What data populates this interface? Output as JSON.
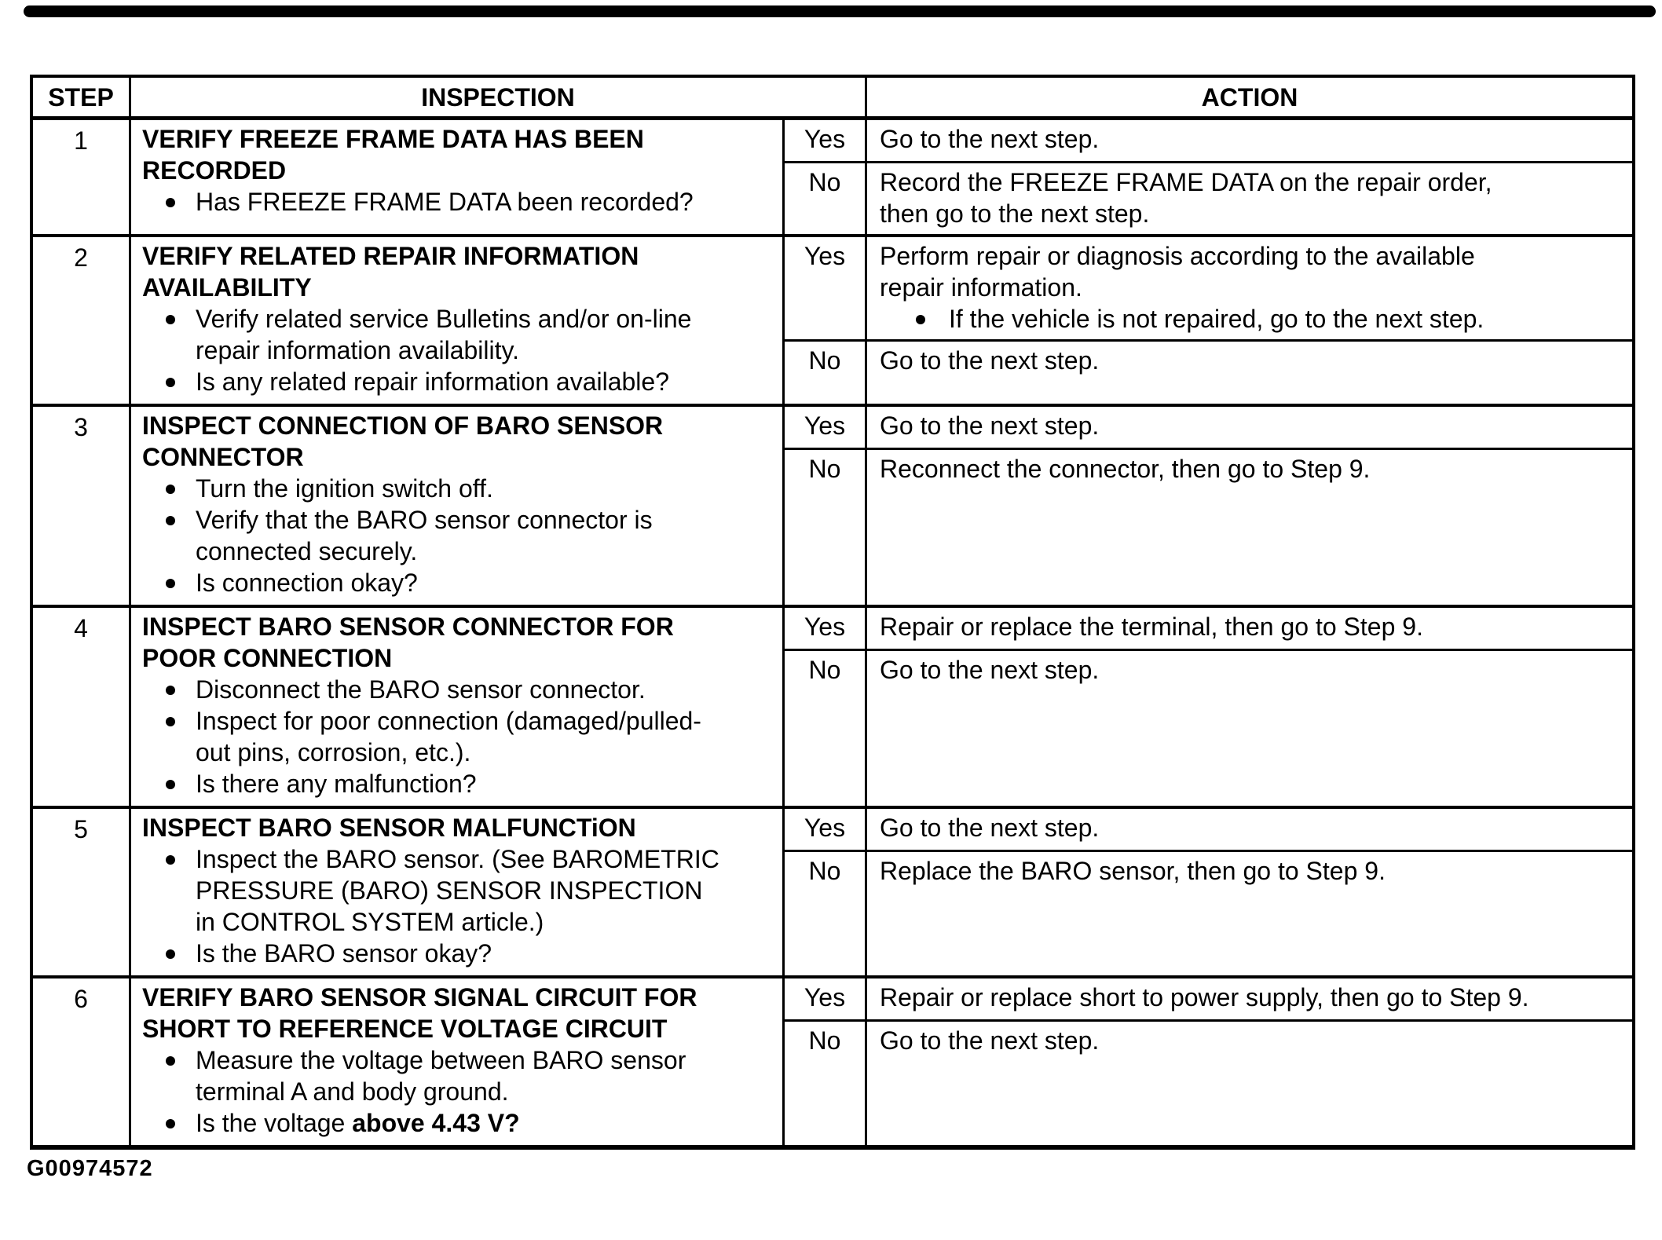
{
  "table": {
    "headers": {
      "step": "STEP",
      "inspection": "INSPECTION",
      "action": "ACTION"
    },
    "rows": [
      {
        "step": "1",
        "title_lines": [
          "VERIFY FREEZE FRAME DATA HAS BEEN",
          "RECORDED"
        ],
        "bullets": [
          {
            "lines": [
              "Has FREEZE FRAME DATA been recorded?"
            ]
          }
        ],
        "branches": [
          {
            "answer": "Yes",
            "lines": [
              "Go to the next step."
            ]
          },
          {
            "answer": "No",
            "lines": [
              "Record the FREEZE FRAME DATA on the repair order,",
              "then go to the next step."
            ]
          }
        ]
      },
      {
        "step": "2",
        "title_lines": [
          "VERIFY RELATED REPAIR INFORMATION",
          "AVAILABILITY"
        ],
        "bullets": [
          {
            "lines": [
              "Verify related service Bulletins and/or on-line",
              "repair information availability."
            ]
          },
          {
            "lines": [
              "Is any related repair information available?"
            ]
          }
        ],
        "branches": [
          {
            "answer": "Yes",
            "lines": [
              "Perform repair or diagnosis according to the available",
              "repair information."
            ],
            "bullets": [
              {
                "lines": [
                  "If the vehicle is not repaired, go to the next step."
                ]
              }
            ]
          },
          {
            "answer": "No",
            "lines": [
              "Go to the next step."
            ]
          }
        ]
      },
      {
        "step": "3",
        "title_lines": [
          "INSPECT CONNECTION OF BARO SENSOR",
          "CONNECTOR"
        ],
        "bullets": [
          {
            "lines": [
              "Turn the ignition switch off."
            ]
          },
          {
            "lines": [
              "Verify that the BARO sensor connector is",
              "connected securely."
            ]
          },
          {
            "lines": [
              "Is connection okay?"
            ]
          }
        ],
        "branches": [
          {
            "answer": "Yes",
            "lines": [
              "Go to the next step."
            ]
          },
          {
            "answer": "No",
            "lines": [
              "Reconnect the connector, then go to Step 9."
            ]
          }
        ]
      },
      {
        "step": "4",
        "title_lines": [
          "INSPECT BARO SENSOR CONNECTOR FOR",
          "POOR CONNECTION"
        ],
        "bullets": [
          {
            "lines": [
              "Disconnect the BARO sensor connector."
            ]
          },
          {
            "lines": [
              "Inspect for poor connection (damaged/pulled-",
              "out pins, corrosion, etc.)."
            ]
          },
          {
            "lines": [
              "Is there any malfunction?"
            ]
          }
        ],
        "branches": [
          {
            "answer": "Yes",
            "lines": [
              "Repair or replace the terminal, then go to Step 9."
            ]
          },
          {
            "answer": "No",
            "lines": [
              "Go to the next step."
            ]
          }
        ]
      },
      {
        "step": "5",
        "title_lines": [
          "INSPECT BARO SENSOR MALFUNCTiON"
        ],
        "bullets": [
          {
            "lines": [
              "Inspect the BARO sensor.  (See BAROMETRIC",
              "PRESSURE (BARO) SENSOR INSPECTION",
              "in CONTROL SYSTEM article.)"
            ]
          },
          {
            "lines": [
              "Is the BARO sensor okay?"
            ]
          }
        ],
        "branches": [
          {
            "answer": "Yes",
            "lines": [
              "Go to the next step."
            ]
          },
          {
            "answer": "No",
            "lines": [
              "Replace the BARO sensor, then go to Step 9."
            ]
          }
        ]
      },
      {
        "step": "6",
        "title_lines": [
          "VERIFY BARO SENSOR SIGNAL CIRCUIT FOR",
          "SHORT TO REFERENCE VOLTAGE CIRCUIT"
        ],
        "bullets": [
          {
            "lines": [
              "Measure the voltage between BARO sensor",
              "terminal A and body ground."
            ]
          },
          {
            "lines": [
              {
                "text": "Is the voltage ",
                "bold": "above 4.43 V?"
              }
            ]
          }
        ],
        "branches": [
          {
            "answer": "Yes",
            "lines": [
              "Repair or replace short to power supply, then go to Step 9."
            ]
          },
          {
            "answer": "No",
            "lines": [
              "Go to the next step."
            ]
          }
        ]
      }
    ]
  },
  "footer": {
    "figure_code": "G00974572"
  }
}
